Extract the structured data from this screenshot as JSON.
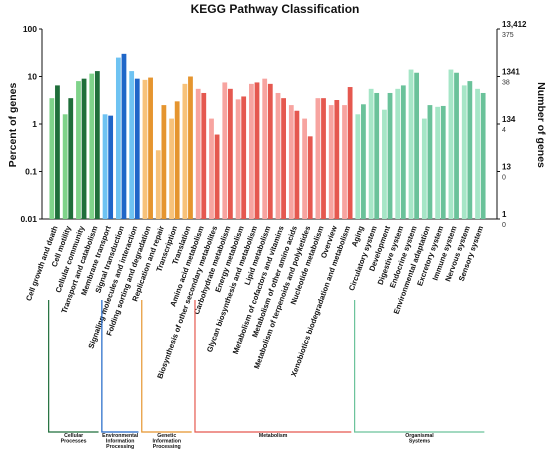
{
  "chart_data": {
    "type": "bar",
    "title": "KEGG Pathway Classification",
    "ylabel": "Percent of genes",
    "ylabel_right": "Number of genes",
    "yscale": "log",
    "ylim": [
      0.01,
      100
    ],
    "yticks": [
      "100",
      "10",
      "1",
      "0.1",
      "0.01"
    ],
    "right_ticks_main": [
      "13,412",
      "1341",
      "134",
      "13",
      "1"
    ],
    "right_ticks_sub": [
      "375",
      "38",
      "4",
      "0",
      "0"
    ],
    "grid": false,
    "categories": [
      "Cell growth and death",
      "Cell motility",
      "Cellular community",
      "Transport and catabolism",
      "Membrane transport",
      "Signal transduction",
      "Signaling molecules and interaction",
      "Folding sorting and degradation",
      "Replication and repair",
      "Transcription",
      "Translation",
      "Amino acid metabolism",
      "Biosynthesis of other secondary metabolites",
      "Carbohydrate metabolism",
      "Energy metabolism",
      "Glycan biosynthesis and metabolism",
      "Lipid metabolism",
      "Metabolism of cofactors and vitamins",
      "Metabolism of other amino acids",
      "Metabolism of terpenoids and polyketides",
      "Nucleotide metabolism",
      "Overview",
      "Xenobiotics biodegradation and metabolism",
      "Aging",
      "Circulatory system",
      "Development",
      "Digestive system",
      "Endocrine system",
      "Environmental adaptation",
      "Excretory system",
      "Immune system",
      "Nervous system",
      "Sensory system"
    ],
    "series": [
      {
        "values": [
          3.5,
          1.6,
          8.0,
          11.5,
          1.6,
          25,
          13,
          8.5,
          0.28,
          1.3,
          7.0,
          5.5,
          1.3,
          7.5,
          3.3,
          7.0,
          9.0,
          4.5,
          2.5,
          1.3,
          3.5,
          2.5,
          2.5,
          1.6,
          5.5,
          2.0,
          5.5,
          14.0,
          1.3,
          2.3,
          14.0,
          6.5,
          5.5
        ]
      },
      {
        "values": [
          6.5,
          3.5,
          9.0,
          13.0,
          1.5,
          30,
          9.0,
          9.5,
          2.5,
          3.0,
          10.0,
          4.5,
          0.6,
          5.5,
          3.8,
          7.5,
          7.0,
          3.5,
          1.9,
          0.55,
          3.5,
          3.2,
          6.0,
          2.6,
          4.5,
          4.5,
          6.5,
          12.0,
          2.5,
          2.4,
          12.0,
          8.0,
          4.5
        ]
      }
    ],
    "groups": [
      {
        "label": "Cellular Processes",
        "count": 4
      },
      {
        "label": "Environmental Information Processing",
        "count": 3
      },
      {
        "label": "Genetic Information Processing",
        "count": 4
      },
      {
        "label": "Metabolism",
        "count": 12
      },
      {
        "label": "Organismal Systems",
        "count": 10
      }
    ],
    "colors": {
      "Cellular Processes": [
        "#7fd38a",
        "#1f6e3a"
      ],
      "Environmental Information Processing": [
        "#6ec3f2",
        "#1f66c8"
      ],
      "Genetic Information Processing": [
        "#f7c27a",
        "#e5952f"
      ],
      "Metabolism": [
        "#f7a4a0",
        "#e5584f"
      ],
      "Organismal Systems": [
        "#a6e6c7",
        "#6ac29a"
      ]
    }
  }
}
